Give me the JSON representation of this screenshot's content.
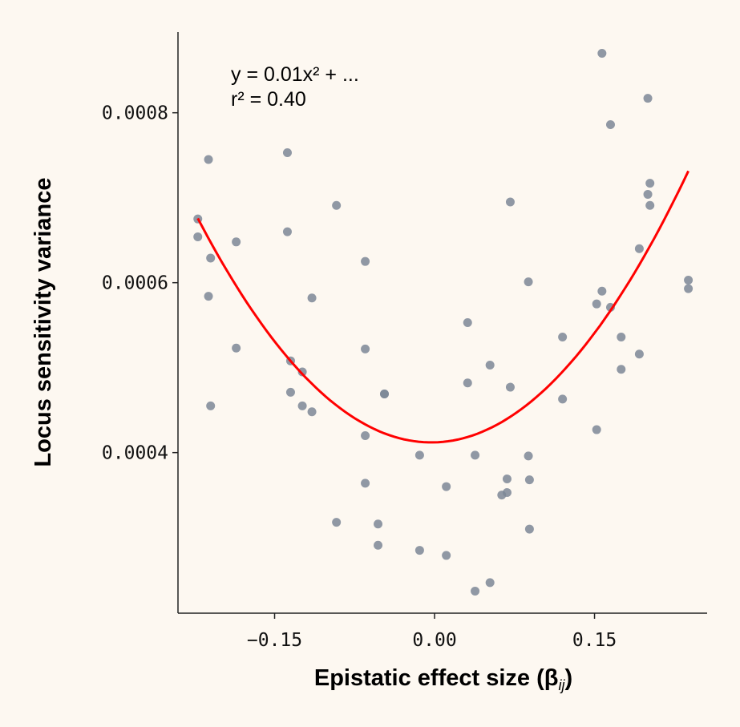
{
  "chart_data": {
    "type": "scatter",
    "xlabel": "Epistatic effect size (β",
    "xlabel_sub": "ij",
    "xlabel_close": ")",
    "ylabel": "Locus sensitivity variance",
    "xlim": [
      -0.2406,
      0.2556
    ],
    "ylim": [
      0.000211,
      0.000895
    ],
    "xticks": [
      -0.15,
      0.0,
      0.15
    ],
    "xtick_labels": [
      "−0.15",
      "0.00",
      "0.15"
    ],
    "yticks": [
      0.0004,
      0.0006,
      0.0008
    ],
    "ytick_labels": [
      "0.0004",
      "0.0006",
      "0.0008"
    ],
    "grid": false,
    "annotation": [
      "y = 0.01x² + ...",
      "r² = 0.40"
    ],
    "colors": {
      "points": "#7d8796",
      "fit": "#ff0000",
      "background": "#fdf8f1"
    },
    "points": [
      [
        -0.222,
        0.000675
      ],
      [
        -0.222,
        0.000654
      ],
      [
        -0.212,
        0.000745
      ],
      [
        -0.21,
        0.000629
      ],
      [
        -0.212,
        0.000584
      ],
      [
        -0.21,
        0.000455
      ],
      [
        -0.186,
        0.000648
      ],
      [
        -0.186,
        0.000523
      ],
      [
        -0.138,
        0.000753
      ],
      [
        -0.138,
        0.00066
      ],
      [
        -0.135,
        0.000508
      ],
      [
        -0.124,
        0.000495
      ],
      [
        -0.135,
        0.000471
      ],
      [
        -0.124,
        0.000455
      ],
      [
        -0.115,
        0.000448
      ],
      [
        -0.115,
        0.000582
      ],
      [
        -0.092,
        0.000691
      ],
      [
        -0.092,
        0.000318
      ],
      [
        -0.065,
        0.000625
      ],
      [
        -0.065,
        0.000522
      ],
      [
        -0.047,
        0.000469
      ],
      [
        -0.047,
        0.000469
      ],
      [
        -0.065,
        0.00042
      ],
      [
        -0.065,
        0.000364
      ],
      [
        -0.053,
        0.000316
      ],
      [
        -0.053,
        0.000291
      ],
      [
        -0.014,
        0.000397
      ],
      [
        -0.014,
        0.000285
      ],
      [
        0.011,
        0.00036
      ],
      [
        0.011,
        0.000279
      ],
      [
        0.031,
        0.000553
      ],
      [
        0.031,
        0.000482
      ],
      [
        0.038,
        0.000397
      ],
      [
        0.038,
        0.000237
      ],
      [
        0.052,
        0.000503
      ],
      [
        0.052,
        0.000247
      ],
      [
        0.071,
        0.000695
      ],
      [
        0.071,
        0.000477
      ],
      [
        0.068,
        0.000369
      ],
      [
        0.063,
        0.00035
      ],
      [
        0.068,
        0.000353
      ],
      [
        0.088,
        0.000601
      ],
      [
        0.088,
        0.000396
      ],
      [
        0.089,
        0.000368
      ],
      [
        0.089,
        0.00031
      ],
      [
        0.12,
        0.000536
      ],
      [
        0.12,
        0.000463
      ],
      [
        0.152,
        0.000575
      ],
      [
        0.157,
        0.00059
      ],
      [
        0.152,
        0.000427
      ],
      [
        0.165,
        0.000571
      ],
      [
        0.157,
        0.00087
      ],
      [
        0.165,
        0.000786
      ],
      [
        0.175,
        0.000536
      ],
      [
        0.175,
        0.000498
      ],
      [
        0.192,
        0.00064
      ],
      [
        0.192,
        0.000516
      ],
      [
        0.2,
        0.000817
      ],
      [
        0.202,
        0.000717
      ],
      [
        0.2,
        0.000704
      ],
      [
        0.202,
        0.000691
      ],
      [
        0.238,
        0.000603
      ],
      [
        0.238,
        0.000593
      ]
    ],
    "fit": {
      "type": "quadratic",
      "a": 0.0055,
      "h": -0.003,
      "k": 0.000412,
      "x_range": [
        -0.222,
        0.238
      ]
    }
  }
}
